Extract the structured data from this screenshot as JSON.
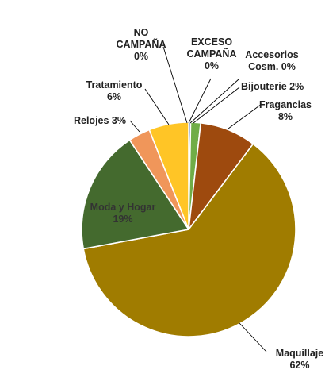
{
  "chart_data": {
    "type": "pie",
    "title": "",
    "start_angle_deg": 0,
    "direction": "clockwise",
    "slices": [
      {
        "name": "NO CAMPAÑA",
        "label_lines": [
          "NO",
          "CAMPAÑA"
        ],
        "value": 0,
        "value_label": "0%",
        "color": "#F2C94C"
      },
      {
        "name": "EXCESO CAMPAÑA",
        "label_lines": [
          "EXCESO",
          "CAMPAÑA"
        ],
        "value": 0,
        "value_label": "0%",
        "color": "#8E8E8E"
      },
      {
        "name": "Accesorios Cosm.",
        "label_lines": [
          "Accesorios",
          "Cosm. 0%"
        ],
        "value": 0.3,
        "value_label": "",
        "color": "#5B7FC4"
      },
      {
        "name": "Bijouterie",
        "label_lines": [
          "Bijouterie 2%"
        ],
        "value": 1.5,
        "value_label": "",
        "color": "#70AD47"
      },
      {
        "name": "Fragancias",
        "label_lines": [
          "Fragancias"
        ],
        "value": 8.5,
        "value_label": "8%",
        "color": "#9E4A0E"
      },
      {
        "name": "Maquillaje",
        "label_lines": [
          "Maquillaje"
        ],
        "value": 61.8,
        "value_label": "62%",
        "color": "#A07C00"
      },
      {
        "name": "Moda y Hogar",
        "label_lines": [
          "Moda y Hogar"
        ],
        "value": 18.6,
        "value_label": "19%",
        "color": "#446A2E"
      },
      {
        "name": "Relojes",
        "label_lines": [
          "Relojes 3%"
        ],
        "value": 3.3,
        "value_label": "",
        "color": "#F0965A"
      },
      {
        "name": "Tratamiento",
        "label_lines": [
          "Tratamiento"
        ],
        "value": 6.0,
        "value_label": "6%",
        "color": "#FFC526"
      }
    ],
    "legend": "none"
  }
}
